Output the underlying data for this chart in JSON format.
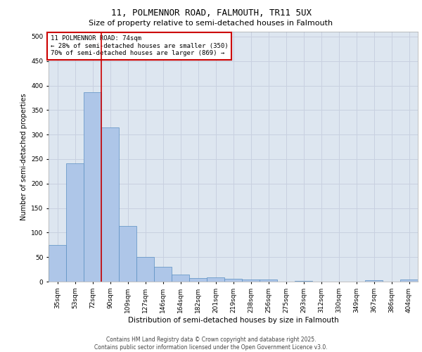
{
  "title1": "11, POLMENNOR ROAD, FALMOUTH, TR11 5UX",
  "title2": "Size of property relative to semi-detached houses in Falmouth",
  "xlabel": "Distribution of semi-detached houses by size in Falmouth",
  "ylabel": "Number of semi-detached properties",
  "categories": [
    "35sqm",
    "53sqm",
    "72sqm",
    "90sqm",
    "109sqm",
    "127sqm",
    "146sqm",
    "164sqm",
    "182sqm",
    "201sqm",
    "219sqm",
    "238sqm",
    "256sqm",
    "275sqm",
    "293sqm",
    "312sqm",
    "330sqm",
    "349sqm",
    "367sqm",
    "386sqm",
    "404sqm"
  ],
  "values": [
    75,
    242,
    387,
    315,
    113,
    50,
    30,
    14,
    7,
    8,
    6,
    5,
    4,
    0,
    2,
    0,
    0,
    0,
    3,
    0,
    4
  ],
  "bar_color": "#aec6e8",
  "bar_edge_color": "#5a8fc2",
  "grid_color": "#c8d0e0",
  "background_color": "#dde6f0",
  "vline_color": "#cc0000",
  "vline_x_index": 2,
  "annotation_text": "11 POLMENNOR ROAD: 74sqm\n← 28% of semi-detached houses are smaller (350)\n70% of semi-detached houses are larger (869) →",
  "annotation_box_color": "#ffffff",
  "annotation_box_edge": "#cc0000",
  "footer_text": "Contains HM Land Registry data © Crown copyright and database right 2025.\nContains public sector information licensed under the Open Government Licence v3.0.",
  "ylim": [
    0,
    510
  ],
  "yticks": [
    0,
    50,
    100,
    150,
    200,
    250,
    300,
    350,
    400,
    450,
    500
  ],
  "title1_fontsize": 9,
  "title2_fontsize": 8,
  "ylabel_fontsize": 7,
  "xlabel_fontsize": 7.5,
  "tick_fontsize": 6.5,
  "annot_fontsize": 6.5,
  "footer_fontsize": 5.5
}
